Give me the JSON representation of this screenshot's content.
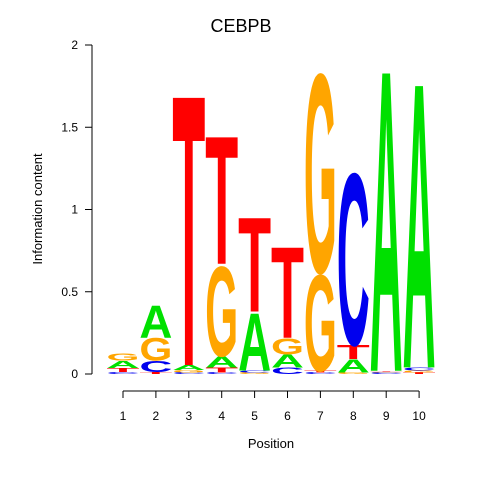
{
  "chart_data": {
    "type": "sequence-logo",
    "title": "CEBPB",
    "xlabel": "Position",
    "ylabel": "Information content",
    "ylim": [
      0,
      2
    ],
    "yticks": [
      "0",
      "0.5",
      "1",
      "1.5",
      "2"
    ],
    "positions": [
      "1",
      "2",
      "3",
      "4",
      "5",
      "6",
      "7",
      "8",
      "9",
      "10"
    ],
    "colors": {
      "A": "#00e000",
      "C": "#0000ee",
      "G": "#ffa500",
      "T": "#ff0000"
    },
    "stacks": [
      [
        {
          "l": "C",
          "h": 0.012
        },
        {
          "l": "T",
          "h": 0.025
        },
        {
          "l": "A",
          "h": 0.045
        },
        {
          "l": "G",
          "h": 0.045
        }
      ],
      [
        {
          "l": "T",
          "h": 0.012
        },
        {
          "l": "C",
          "h": 0.07
        },
        {
          "l": "G",
          "h": 0.14
        },
        {
          "l": "A",
          "h": 0.2
        }
      ],
      [
        {
          "l": "C",
          "h": 0.01
        },
        {
          "l": "G",
          "h": 0.015
        },
        {
          "l": "A",
          "h": 0.03
        },
        {
          "l": "T",
          "h": 1.69
        }
      ],
      [
        {
          "l": "C",
          "h": 0.01
        },
        {
          "l": "T",
          "h": 0.03
        },
        {
          "l": "A",
          "h": 0.07
        },
        {
          "l": "G",
          "h": 0.56
        },
        {
          "l": "T",
          "h": 0.8
        }
      ],
      [
        {
          "l": "G",
          "h": 0.01
        },
        {
          "l": "C",
          "h": 0.01
        },
        {
          "l": "A",
          "h": 0.36
        },
        {
          "l": "T",
          "h": 0.59
        }
      ],
      [
        {
          "l": "C",
          "h": 0.04
        },
        {
          "l": "A",
          "h": 0.08
        },
        {
          "l": "G",
          "h": 0.1
        },
        {
          "l": "T",
          "h": 0.57
        }
      ],
      [
        {
          "l": "C",
          "h": 0.01
        },
        {
          "l": "T",
          "h": 0.01
        },
        {
          "l": "G",
          "h": 0.6
        },
        {
          "l": "G",
          "h": 1.24
        }
      ],
      [
        {
          "l": "G",
          "h": 0.01
        },
        {
          "l": "A",
          "h": 0.08
        },
        {
          "l": "T",
          "h": 0.09
        },
        {
          "l": "C",
          "h": 1.07
        }
      ],
      [
        {
          "l": "C",
          "h": 0.01
        },
        {
          "l": "G",
          "h": 0.005
        },
        {
          "l": "T",
          "h": 0.005
        },
        {
          "l": "A",
          "h": 1.88
        }
      ],
      [
        {
          "l": "T",
          "h": 0.01
        },
        {
          "l": "G",
          "h": 0.01
        },
        {
          "l": "C",
          "h": 0.02
        },
        {
          "l": "A",
          "h": 1.78
        }
      ]
    ]
  }
}
